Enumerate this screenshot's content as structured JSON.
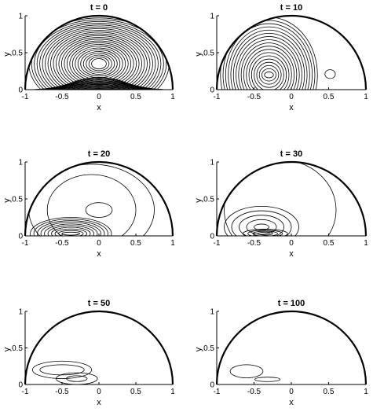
{
  "chart_data": [
    {
      "type": "contour",
      "title": "t = 0",
      "xlabel": "x",
      "ylabel": "y",
      "xlim": [
        -1,
        1
      ],
      "ylim": [
        0,
        1
      ],
      "xticks": [
        "-1",
        "-0.5",
        "0",
        "0.5",
        "1"
      ],
      "yticks": [
        "0",
        "0.5",
        "1"
      ],
      "boundary": "unit half-disk",
      "grid": false,
      "contours": [
        {
          "cx": 0.0,
          "cy": 0.35,
          "levels": 24,
          "rx_max": 0.95,
          "ry_max": 0.62,
          "rx_min": 0.1,
          "ry_min": 0.07
        }
      ],
      "dense_near_base": true
    },
    {
      "type": "contour",
      "title": "t = 10",
      "xlabel": "x",
      "ylabel": "y",
      "xlim": [
        -1,
        1
      ],
      "ylim": [
        0,
        1
      ],
      "xticks": [
        "-1",
        "-0.5",
        "0",
        "0.5",
        "1"
      ],
      "yticks": [
        "0",
        "0.5",
        "1"
      ],
      "boundary": "unit half-disk",
      "grid": false,
      "contours": [
        {
          "cx": -0.3,
          "cy": 0.2,
          "levels": 18,
          "rx_max": 0.65,
          "ry_max": 0.78,
          "rx_min": 0.06,
          "ry_min": 0.04
        },
        {
          "cx": 0.52,
          "cy": 0.21,
          "levels": 1,
          "rx_max": 0.07,
          "ry_max": 0.06,
          "rx_min": 0.07,
          "ry_min": 0.06
        }
      ]
    },
    {
      "type": "contour",
      "title": "t = 20",
      "xlabel": "x",
      "ylabel": "y",
      "xlim": [
        -1,
        1
      ],
      "ylim": [
        0,
        1
      ],
      "xticks": [
        "-1",
        "-0.5",
        "0",
        "0.5",
        "1"
      ],
      "yticks": [
        "0",
        "0.5",
        "1"
      ],
      "boundary": "unit half-disk",
      "grid": false,
      "contours": [
        {
          "cx": -0.1,
          "cy": 0.35,
          "levels": 2,
          "rx_max": 0.85,
          "ry_max": 0.62,
          "rx_min": 0.6,
          "ry_min": 0.48
        },
        {
          "cx": 0.0,
          "cy": 0.35,
          "levels": 1,
          "rx_max": 0.18,
          "ry_max": 0.1,
          "rx_min": 0.18,
          "ry_min": 0.1
        },
        {
          "cx": -0.38,
          "cy": 0.03,
          "levels": 10,
          "rx_max": 0.55,
          "ry_max": 0.22,
          "rx_min": 0.12,
          "ry_min": 0.02
        }
      ]
    },
    {
      "type": "contour",
      "title": "t = 30",
      "xlabel": "x",
      "ylabel": "y",
      "xlim": [
        -1,
        1
      ],
      "ylim": [
        0,
        1
      ],
      "xticks": [
        "-1",
        "-0.5",
        "0",
        "0.5",
        "1"
      ],
      "yticks": [
        "0",
        "0.5",
        "1"
      ],
      "boundary": "unit half-disk",
      "grid": false,
      "contours": [
        {
          "cx": -0.15,
          "cy": 0.35,
          "levels": 1,
          "rx_max": 0.75,
          "ry_max": 0.68,
          "rx_min": 0.75,
          "ry_min": 0.68
        },
        {
          "cx": -0.4,
          "cy": 0.12,
          "levels": 5,
          "rx_max": 0.5,
          "ry_max": 0.28,
          "rx_min": 0.1,
          "ry_min": 0.04
        },
        {
          "cx": -0.35,
          "cy": 0.03,
          "levels": 4,
          "rx_max": 0.3,
          "ry_max": 0.06,
          "rx_min": 0.1,
          "ry_min": 0.02
        }
      ]
    },
    {
      "type": "contour",
      "title": "t = 50",
      "xlabel": "x",
      "ylabel": "y",
      "xlim": [
        -1,
        1
      ],
      "ylim": [
        0,
        1
      ],
      "xticks": [
        "-1",
        "-0.5",
        "0",
        "0.5",
        "1"
      ],
      "yticks": [
        "0",
        "0.5",
        "1"
      ],
      "boundary": "unit half-disk",
      "grid": false,
      "contours": [
        {
          "cx": -0.5,
          "cy": 0.2,
          "levels": 2,
          "rx_max": 0.4,
          "ry_max": 0.12,
          "rx_min": 0.3,
          "ry_min": 0.07
        },
        {
          "cx": -0.3,
          "cy": 0.08,
          "levels": 2,
          "rx_max": 0.28,
          "ry_max": 0.08,
          "rx_min": 0.14,
          "ry_min": 0.04
        }
      ]
    },
    {
      "type": "contour",
      "title": "t = 100",
      "xlabel": "x",
      "ylabel": "y",
      "xlim": [
        -1,
        1
      ],
      "ylim": [
        0,
        1
      ],
      "xticks": [
        "-1",
        "-0.5",
        "0",
        "0.5",
        "1"
      ],
      "yticks": [
        "0",
        "0.5",
        "1"
      ],
      "boundary": "unit half-disk",
      "grid": false,
      "contours": [
        {
          "cx": -0.6,
          "cy": 0.18,
          "levels": 1,
          "rx_max": 0.22,
          "ry_max": 0.09,
          "rx_min": 0.22,
          "ry_min": 0.09
        },
        {
          "cx": -0.32,
          "cy": 0.07,
          "levels": 1,
          "rx_max": 0.17,
          "ry_max": 0.03,
          "rx_min": 0.17,
          "ry_min": 0.03
        }
      ]
    }
  ]
}
